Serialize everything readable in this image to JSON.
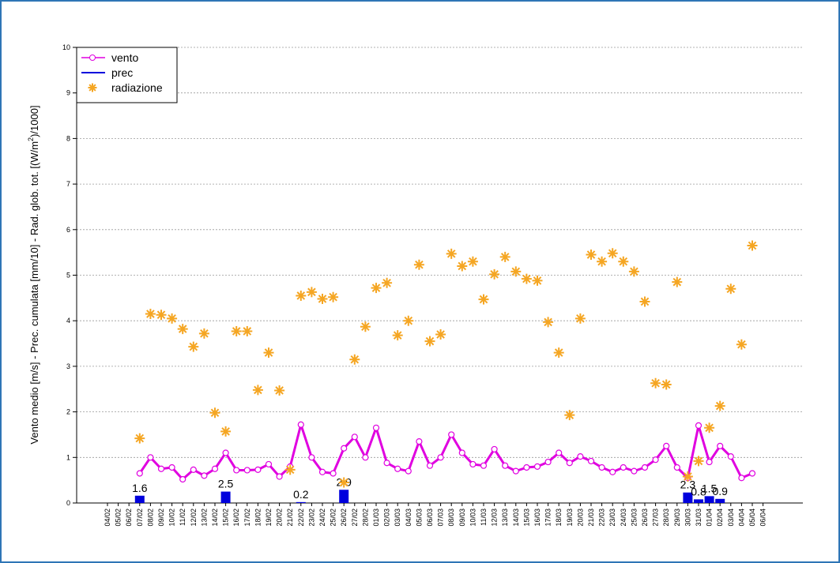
{
  "chart_data": {
    "type": "combo",
    "ylabel": [
      "Vento medio [m/s] - Prec. cumulata [mm/10] - Rad. glob. tot. [(W/m",
      "2",
      ")/1000]"
    ],
    "categories": [
      "04/02",
      "05/02",
      "06/02",
      "07/02",
      "08/02",
      "09/02",
      "10/02",
      "11/02",
      "12/02",
      "13/02",
      "14/02",
      "15/02",
      "16/02",
      "17/02",
      "18/02",
      "19/02",
      "20/02",
      "21/02",
      "22/02",
      "23/02",
      "24/02",
      "25/02",
      "26/02",
      "27/02",
      "28/02",
      "01/03",
      "02/03",
      "03/03",
      "04/03",
      "05/03",
      "06/03",
      "07/03",
      "08/03",
      "09/03",
      "10/03",
      "11/03",
      "12/03",
      "13/03",
      "14/03",
      "15/03",
      "16/03",
      "17/03",
      "18/03",
      "19/03",
      "20/03",
      "21/03",
      "22/03",
      "23/03",
      "24/03",
      "25/03",
      "26/03",
      "27/03",
      "28/03",
      "29/03",
      "30/03",
      "31/03",
      "01/04",
      "02/04",
      "03/04",
      "04/04",
      "05/04",
      "06/04"
    ],
    "series": [
      {
        "name": "vento",
        "type": "line",
        "color": "#e000e0",
        "values": [
          null,
          null,
          null,
          0.65,
          1.0,
          0.75,
          0.78,
          0.52,
          0.73,
          0.6,
          0.75,
          1.1,
          0.72,
          0.72,
          0.73,
          0.85,
          0.58,
          0.8,
          1.72,
          1.0,
          0.68,
          0.65,
          1.2,
          1.45,
          1.0,
          1.65,
          0.88,
          0.75,
          0.7,
          1.35,
          0.82,
          1.0,
          1.5,
          1.1,
          0.85,
          0.82,
          1.18,
          0.82,
          0.7,
          0.78,
          0.8,
          0.9,
          1.1,
          0.88,
          1.02,
          0.92,
          0.78,
          0.68,
          0.78,
          0.7,
          0.78,
          0.95,
          1.25,
          0.78,
          0.55,
          1.7,
          0.9,
          1.25,
          1.02,
          0.55,
          0.65,
          null
        ]
      },
      {
        "name": "prec",
        "type": "bar",
        "color": "#0000dd",
        "values": [
          null,
          null,
          null,
          0.16,
          null,
          null,
          null,
          null,
          null,
          null,
          null,
          0.25,
          null,
          null,
          null,
          null,
          null,
          null,
          0.02,
          null,
          null,
          null,
          0.29,
          null,
          null,
          null,
          null,
          null,
          null,
          null,
          null,
          null,
          null,
          null,
          null,
          null,
          null,
          null,
          null,
          null,
          null,
          null,
          null,
          null,
          null,
          null,
          null,
          null,
          null,
          null,
          null,
          null,
          null,
          null,
          0.23,
          0.08,
          0.15,
          0.09,
          null,
          null,
          null,
          null
        ],
        "value_labels": [
          null,
          null,
          null,
          "1.6",
          null,
          null,
          null,
          null,
          null,
          null,
          null,
          "2.5",
          null,
          null,
          null,
          null,
          null,
          null,
          "0.2",
          null,
          null,
          null,
          "2.9",
          null,
          null,
          null,
          null,
          null,
          null,
          null,
          null,
          null,
          null,
          null,
          null,
          null,
          null,
          null,
          null,
          null,
          null,
          null,
          null,
          null,
          null,
          null,
          null,
          null,
          null,
          null,
          null,
          null,
          null,
          null,
          "2.3",
          "0.8",
          "1.5",
          "0.9",
          null,
          null,
          null,
          null
        ]
      },
      {
        "name": "radiazione",
        "type": "scatter",
        "color": "#f5a623",
        "values": [
          null,
          null,
          null,
          1.42,
          4.15,
          4.13,
          4.05,
          3.82,
          3.43,
          3.72,
          1.98,
          1.57,
          3.77,
          3.77,
          2.48,
          3.3,
          2.47,
          0.73,
          4.55,
          4.63,
          4.48,
          4.52,
          0.45,
          3.15,
          3.87,
          4.72,
          4.83,
          3.68,
          4.0,
          5.23,
          3.55,
          3.7,
          5.47,
          5.2,
          5.3,
          4.47,
          5.02,
          5.4,
          5.08,
          4.92,
          4.88,
          3.97,
          3.3,
          1.93,
          4.05,
          5.45,
          5.3,
          5.48,
          5.3,
          5.08,
          4.42,
          2.63,
          2.6,
          4.85,
          0.58,
          0.92,
          1.65,
          2.13,
          4.7,
          3.48,
          5.65,
          null
        ]
      }
    ],
    "ylim": [
      0,
      10
    ],
    "yticks": [
      0,
      1,
      2,
      3,
      4,
      5,
      6,
      7,
      8,
      9,
      10
    ],
    "grid": true,
    "legend": "top-left"
  }
}
